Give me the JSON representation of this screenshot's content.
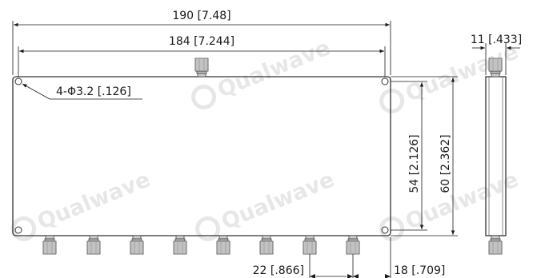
{
  "drawing": {
    "dimensions": {
      "overall_length": "190 [7.48]",
      "hole_spacing": "184 [7.244]",
      "mounting_holes": "4-Φ3.2 [.126]",
      "thickness": "11 [.433]",
      "hole_pitch_height": "54 [2.126]",
      "overall_height": "60 [2.362]",
      "port_pitch": "22 [.866]",
      "edge_offset": "18 [.709]"
    },
    "output_port_count": 8,
    "input_port_count": 1
  },
  "watermark": {
    "brand": "Qualwave"
  }
}
